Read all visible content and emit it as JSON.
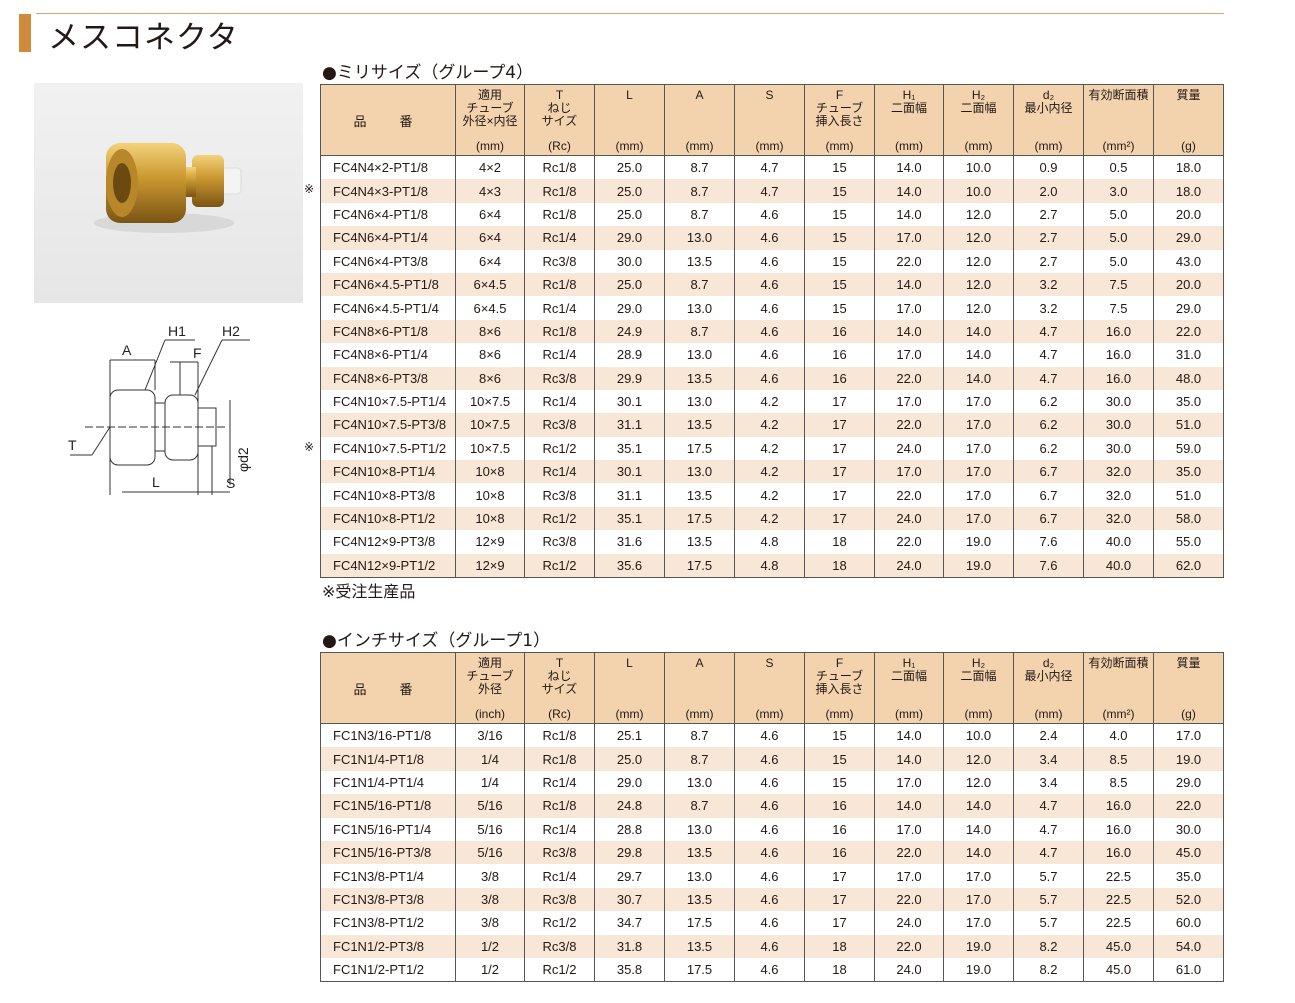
{
  "title": "メスコネクタ",
  "colors": {
    "accent": "#d08a3c",
    "header_bg": "#f2d3ae",
    "row_alt": "#f8e7d6"
  },
  "diagram": {
    "labels": {
      "A": "A",
      "H1": "H1",
      "H2": "H2",
      "F": "F",
      "T": "T",
      "L": "L",
      "S": "S",
      "d2": "φd2"
    }
  },
  "metric": {
    "title": "●ミリサイズ（グループ4）",
    "headers": [
      {
        "label": "品　番",
        "unit": ""
      },
      {
        "label": "適用\nチューブ\n外径×内径",
        "unit": "(mm)"
      },
      {
        "label": "T\nねじ\nサイズ",
        "unit": "(Rc)"
      },
      {
        "label": "L",
        "unit": "(mm)"
      },
      {
        "label": "A",
        "unit": "(mm)"
      },
      {
        "label": "S",
        "unit": "(mm)"
      },
      {
        "label": "F\nチューブ\n挿入長さ",
        "unit": "(mm)"
      },
      {
        "label": "H₁\n二面幅",
        "unit": "(mm)"
      },
      {
        "label": "H₂\n二面幅",
        "unit": "(mm)"
      },
      {
        "label": "d₂\n最小内径",
        "unit": "(mm)"
      },
      {
        "label": "有効断面積",
        "unit": "(mm²)"
      },
      {
        "label": "質量",
        "unit": "(g)"
      }
    ],
    "rows": [
      {
        "mark": "",
        "cells": [
          "FC4N4×2-PT1/8",
          "4×2",
          "Rc1/8",
          "25.0",
          "8.7",
          "4.7",
          "15",
          "14.0",
          "10.0",
          "0.9",
          "0.5",
          "18.0"
        ]
      },
      {
        "mark": "※",
        "cells": [
          "FC4N4×3-PT1/8",
          "4×3",
          "Rc1/8",
          "25.0",
          "8.7",
          "4.7",
          "15",
          "14.0",
          "10.0",
          "2.0",
          "3.0",
          "18.0"
        ]
      },
      {
        "mark": "",
        "cells": [
          "FC4N6×4-PT1/8",
          "6×4",
          "Rc1/8",
          "25.0",
          "8.7",
          "4.6",
          "15",
          "14.0",
          "12.0",
          "2.7",
          "5.0",
          "20.0"
        ]
      },
      {
        "mark": "",
        "cells": [
          "FC4N6×4-PT1/4",
          "6×4",
          "Rc1/4",
          "29.0",
          "13.0",
          "4.6",
          "15",
          "17.0",
          "12.0",
          "2.7",
          "5.0",
          "29.0"
        ]
      },
      {
        "mark": "",
        "cells": [
          "FC4N6×4-PT3/8",
          "6×4",
          "Rc3/8",
          "30.0",
          "13.5",
          "4.6",
          "15",
          "22.0",
          "12.0",
          "2.7",
          "5.0",
          "43.0"
        ]
      },
      {
        "mark": "",
        "cells": [
          "FC4N6×4.5-PT1/8",
          "6×4.5",
          "Rc1/8",
          "25.0",
          "8.7",
          "4.6",
          "15",
          "14.0",
          "12.0",
          "3.2",
          "7.5",
          "20.0"
        ]
      },
      {
        "mark": "",
        "cells": [
          "FC4N6×4.5-PT1/4",
          "6×4.5",
          "Rc1/4",
          "29.0",
          "13.0",
          "4.6",
          "15",
          "17.0",
          "12.0",
          "3.2",
          "7.5",
          "29.0"
        ]
      },
      {
        "mark": "",
        "cells": [
          "FC4N8×6-PT1/8",
          "8×6",
          "Rc1/8",
          "24.9",
          "8.7",
          "4.6",
          "16",
          "14.0",
          "14.0",
          "4.7",
          "16.0",
          "22.0"
        ]
      },
      {
        "mark": "",
        "cells": [
          "FC4N8×6-PT1/4",
          "8×6",
          "Rc1/4",
          "28.9",
          "13.0",
          "4.6",
          "16",
          "17.0",
          "14.0",
          "4.7",
          "16.0",
          "31.0"
        ]
      },
      {
        "mark": "",
        "cells": [
          "FC4N8×6-PT3/8",
          "8×6",
          "Rc3/8",
          "29.9",
          "13.5",
          "4.6",
          "16",
          "22.0",
          "14.0",
          "4.7",
          "16.0",
          "48.0"
        ]
      },
      {
        "mark": "",
        "cells": [
          "FC4N10×7.5-PT1/4",
          "10×7.5",
          "Rc1/4",
          "30.1",
          "13.0",
          "4.2",
          "17",
          "17.0",
          "17.0",
          "6.2",
          "30.0",
          "35.0"
        ]
      },
      {
        "mark": "",
        "cells": [
          "FC4N10×7.5-PT3/8",
          "10×7.5",
          "Rc3/8",
          "31.1",
          "13.5",
          "4.2",
          "17",
          "22.0",
          "17.0",
          "6.2",
          "30.0",
          "51.0"
        ]
      },
      {
        "mark": "※",
        "cells": [
          "FC4N10×7.5-PT1/2",
          "10×7.5",
          "Rc1/2",
          "35.1",
          "17.5",
          "4.2",
          "17",
          "24.0",
          "17.0",
          "6.2",
          "30.0",
          "59.0"
        ]
      },
      {
        "mark": "",
        "cells": [
          "FC4N10×8-PT1/4",
          "10×8",
          "Rc1/4",
          "30.1",
          "13.0",
          "4.2",
          "17",
          "17.0",
          "17.0",
          "6.7",
          "32.0",
          "35.0"
        ]
      },
      {
        "mark": "",
        "cells": [
          "FC4N10×8-PT3/8",
          "10×8",
          "Rc3/8",
          "31.1",
          "13.5",
          "4.2",
          "17",
          "22.0",
          "17.0",
          "6.7",
          "32.0",
          "51.0"
        ]
      },
      {
        "mark": "",
        "cells": [
          "FC4N10×8-PT1/2",
          "10×8",
          "Rc1/2",
          "35.1",
          "17.5",
          "4.2",
          "17",
          "24.0",
          "17.0",
          "6.7",
          "32.0",
          "58.0"
        ]
      },
      {
        "mark": "",
        "cells": [
          "FC4N12×9-PT3/8",
          "12×9",
          "Rc3/8",
          "31.6",
          "13.5",
          "4.8",
          "18",
          "22.0",
          "19.0",
          "7.6",
          "40.0",
          "55.0"
        ]
      },
      {
        "mark": "",
        "cells": [
          "FC4N12×9-PT1/2",
          "12×9",
          "Rc1/2",
          "35.6",
          "17.5",
          "4.8",
          "18",
          "24.0",
          "19.0",
          "7.6",
          "40.0",
          "62.0"
        ]
      }
    ],
    "note": "※受注生産品"
  },
  "inch": {
    "title": "●インチサイズ（グループ1）",
    "headers": [
      {
        "label": "品　番",
        "unit": ""
      },
      {
        "label": "適用\nチューブ\n外径",
        "unit": "(inch)"
      },
      {
        "label": "T\nねじ\nサイズ",
        "unit": "(Rc)"
      },
      {
        "label": "L",
        "unit": "(mm)"
      },
      {
        "label": "A",
        "unit": "(mm)"
      },
      {
        "label": "S",
        "unit": "(mm)"
      },
      {
        "label": "F\nチューブ\n挿入長さ",
        "unit": "(mm)"
      },
      {
        "label": "H₁\n二面幅",
        "unit": "(mm)"
      },
      {
        "label": "H₂\n二面幅",
        "unit": "(mm)"
      },
      {
        "label": "d₂\n最小内径",
        "unit": "(mm)"
      },
      {
        "label": "有効断面積",
        "unit": "(mm²)"
      },
      {
        "label": "質量",
        "unit": "(g)"
      }
    ],
    "rows": [
      {
        "cells": [
          "FC1N3/16-PT1/8",
          "3/16",
          "Rc1/8",
          "25.1",
          "8.7",
          "4.6",
          "15",
          "14.0",
          "10.0",
          "2.4",
          "4.0",
          "17.0"
        ]
      },
      {
        "cells": [
          "FC1N1/4-PT1/8",
          "1/4",
          "Rc1/8",
          "25.0",
          "8.7",
          "4.6",
          "15",
          "14.0",
          "12.0",
          "3.4",
          "8.5",
          "19.0"
        ]
      },
      {
        "cells": [
          "FC1N1/4-PT1/4",
          "1/4",
          "Rc1/4",
          "29.0",
          "13.0",
          "4.6",
          "15",
          "17.0",
          "12.0",
          "3.4",
          "8.5",
          "29.0"
        ]
      },
      {
        "cells": [
          "FC1N5/16-PT1/8",
          "5/16",
          "Rc1/8",
          "24.8",
          "8.7",
          "4.6",
          "16",
          "14.0",
          "14.0",
          "4.7",
          "16.0",
          "22.0"
        ]
      },
      {
        "cells": [
          "FC1N5/16-PT1/4",
          "5/16",
          "Rc1/4",
          "28.8",
          "13.0",
          "4.6",
          "16",
          "17.0",
          "14.0",
          "4.7",
          "16.0",
          "30.0"
        ]
      },
      {
        "cells": [
          "FC1N5/16-PT3/8",
          "5/16",
          "Rc3/8",
          "29.8",
          "13.5",
          "4.6",
          "16",
          "22.0",
          "14.0",
          "4.7",
          "16.0",
          "45.0"
        ]
      },
      {
        "cells": [
          "FC1N3/8-PT1/4",
          "3/8",
          "Rc1/4",
          "29.7",
          "13.0",
          "4.6",
          "17",
          "17.0",
          "17.0",
          "5.7",
          "22.5",
          "35.0"
        ]
      },
      {
        "cells": [
          "FC1N3/8-PT3/8",
          "3/8",
          "Rc3/8",
          "30.7",
          "13.5",
          "4.6",
          "17",
          "22.0",
          "17.0",
          "5.7",
          "22.5",
          "52.0"
        ]
      },
      {
        "cells": [
          "FC1N3/8-PT1/2",
          "3/8",
          "Rc1/2",
          "34.7",
          "17.5",
          "4.6",
          "17",
          "24.0",
          "17.0",
          "5.7",
          "22.5",
          "60.0"
        ]
      },
      {
        "cells": [
          "FC1N1/2-PT3/8",
          "1/2",
          "Rc3/8",
          "31.8",
          "13.5",
          "4.6",
          "18",
          "22.0",
          "19.0",
          "8.2",
          "45.0",
          "54.0"
        ]
      },
      {
        "cells": [
          "FC1N1/2-PT1/2",
          "1/2",
          "Rc1/2",
          "35.8",
          "17.5",
          "4.6",
          "18",
          "24.0",
          "19.0",
          "8.2",
          "45.0",
          "61.0"
        ]
      }
    ]
  }
}
